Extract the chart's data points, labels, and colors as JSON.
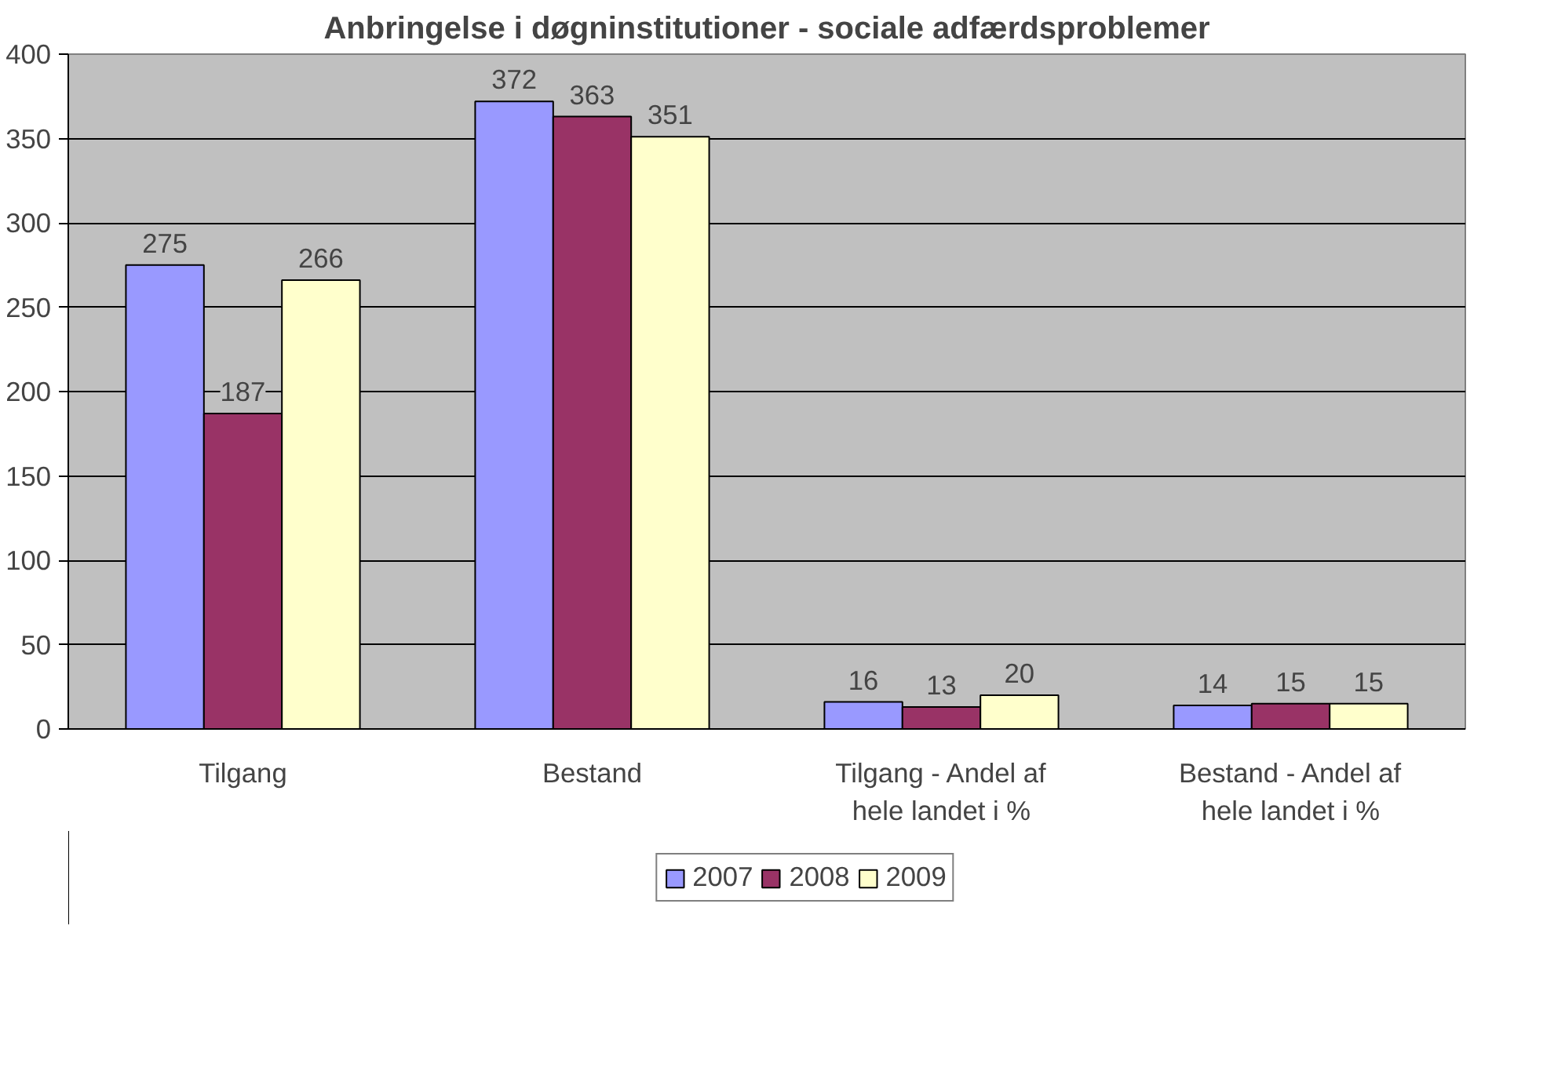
{
  "chart_data": {
    "type": "bar",
    "title": "Anbringelse i døgninstitutioner - sociale adfærdsproblemer",
    "categories": [
      "Tilgang",
      "Bestand",
      "Tilgang - Andel af hele landet i %",
      "Bestand - Andel af hele landet i %"
    ],
    "series": [
      {
        "name": "2007",
        "color": "#9999ff",
        "values": [
          275,
          372,
          16,
          14
        ]
      },
      {
        "name": "2008",
        "color": "#993366",
        "values": [
          187,
          363,
          13,
          15
        ]
      },
      {
        "name": "2009",
        "color": "#ffffcc",
        "values": [
          266,
          351,
          20,
          15
        ]
      }
    ],
    "ylim": [
      0,
      400
    ],
    "yticks": [
      0,
      50,
      100,
      150,
      200,
      250,
      300,
      350,
      400
    ],
    "grid": "y",
    "legend": "bottom",
    "data_labels": true
  }
}
